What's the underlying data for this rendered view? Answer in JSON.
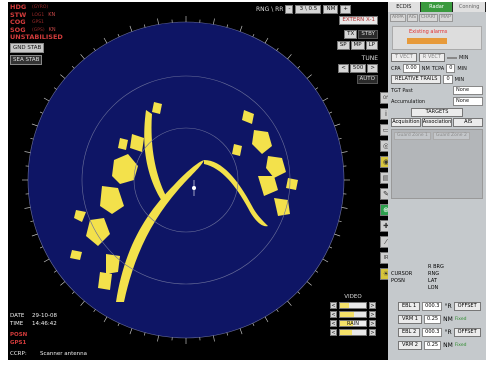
{
  "colors": {
    "scope": "#0e1565",
    "echo": "#f3e14b",
    "panel": "#c5c9cc"
  },
  "left_info": {
    "rows": [
      {
        "label": "HDG",
        "sub": "(GYRO)",
        "value": ""
      },
      {
        "label": "STW",
        "sub": "LOG1",
        "value": "KN"
      },
      {
        "label": "COG",
        "sub": "GPS1",
        "value": ""
      },
      {
        "label": "SOG",
        "sub": "(GPS)",
        "value": "KN"
      }
    ],
    "unstab": "UNSTABILISED",
    "gnd_stab": "GND STAB",
    "sea_stab": "SEA STAB"
  },
  "bottom_left": {
    "date_label": "DATE",
    "date": "29-10-08",
    "time_label": "TIME",
    "time": "14:46:42",
    "posn_label": "POSN",
    "gps_label": "GPS1",
    "ccrp_label": "CCRP:",
    "ccrp": "Scanner antenna"
  },
  "range": {
    "label": "RNG \\ RR",
    "minus": "-",
    "value": "3 \\ 0.5",
    "unit": "NM",
    "plus": "+",
    "extern": "EXTERN X-1"
  },
  "mid": {
    "tx": "TX",
    "stby": "STBY",
    "sp": "SP",
    "mp": "MP",
    "lp": "LP",
    "tune": "TUNE",
    "tune_value": "500",
    "auto": "AUTO",
    "video": "VIDEO",
    "rain": "RAIN",
    "video_bars": [
      0.35,
      0.55,
      0.5,
      0.45
    ]
  },
  "icons": [
    "off-icon",
    "info-icon",
    "dock-icon",
    "radar-icon",
    "target-icon",
    "chart-icon",
    "settings-icon",
    "route-icon",
    "track-icon",
    "line-icon",
    "ir-icon",
    "sun-icon"
  ],
  "icon_labels": {
    "off": "Off",
    "info": "i",
    "ir": "IR"
  },
  "right": {
    "tabs": [
      "ECDIS",
      "Radar",
      "Conning"
    ],
    "subtabs": [
      "ARPA",
      "AIS",
      "CHART",
      "MAP"
    ],
    "existing_alarms": "Existing alarms",
    "true_vect": "T VECT",
    "rel_vect": "R VECT",
    "min": "MIN",
    "cpa_label": "CPA",
    "cpa": "0.00",
    "cpa_unit": "NM",
    "tcpa_label": "TCPA",
    "tcpa": "0",
    "relative_trails": "RELATIVE TRAILS",
    "trails_value": "0",
    "trails_unit": "MIN",
    "tgt_past": "TGT Past",
    "tgt_past_val": "None",
    "accumulation": "Accumulation",
    "accum_val": "None",
    "targets": "TARGETS",
    "target_tabs": [
      "Acquisition",
      "Association",
      "AIS"
    ],
    "guard_zones": [
      "Guard Zone 1",
      "Guard Zone 2"
    ],
    "cursor": {
      "r_brg": "R BRG",
      "rng": "RNG",
      "lat": "LAT",
      "lon": "LON",
      "cursor": "CURSOR",
      "posn": "POSN"
    },
    "ebl1": {
      "label": "EBL 1",
      "value": "000.3",
      "unit": "°R",
      "offset": "OFFSET"
    },
    "vrm1": {
      "label": "VRM 1",
      "value": "0.25",
      "unit": "NM",
      "status": "Fixed"
    },
    "ebl2": {
      "label": "EBL 2",
      "value": "000.3",
      "unit": "°R",
      "offset": "OFFSET"
    },
    "vrm2": {
      "label": "VRM 2",
      "value": "0.25",
      "unit": "NM",
      "status": "Fixed"
    }
  }
}
